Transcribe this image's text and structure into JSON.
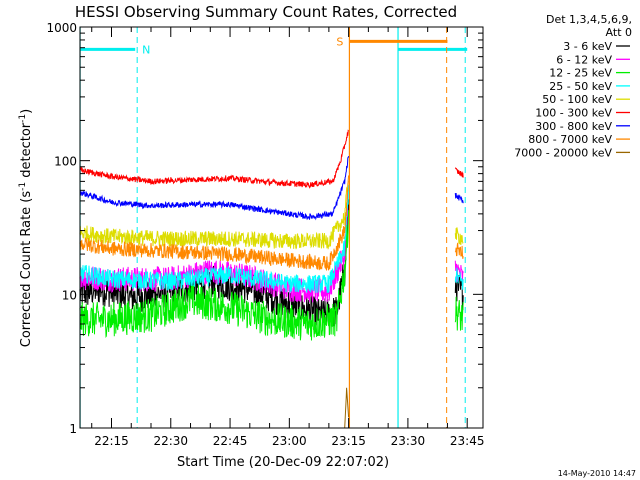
{
  "chart_data": {
    "type": "line",
    "title": "HESSI Observing Summary Count Rates, Corrected",
    "xlabel": "Start Time (20-Dec-09 22:07:02)",
    "ylabel_main": "Corrected Count Rate (s",
    "ylabel_sup1": "-1",
    "ylabel_mid": " detector",
    "ylabel_sup2": "-1",
    "ylabel_end": ")",
    "yscale": "log",
    "ylim": [
      1,
      1000
    ],
    "y_ticks": [
      {
        "v": 1,
        "label": "1"
      },
      {
        "v": 10,
        "label": "10"
      },
      {
        "v": 100,
        "label": "100"
      },
      {
        "v": 1000,
        "label": "1000"
      }
    ],
    "xlim": [
      "22:07:02",
      "23:49:00"
    ],
    "x_ticks": [
      {
        "t": "22:15",
        "label": "22:15"
      },
      {
        "t": "22:30",
        "label": "22:30"
      },
      {
        "t": "22:45",
        "label": "22:45"
      },
      {
        "t": "23:00",
        "label": "23:00"
      },
      {
        "t": "23:15",
        "label": "23:15"
      },
      {
        "t": "23:30",
        "label": "23:30"
      },
      {
        "t": "23:45",
        "label": "23:45"
      }
    ],
    "legend_header": [
      "Det 1,3,4,5,6,9,",
      "Att 0"
    ],
    "legend_position": "outside-right",
    "series": [
      {
        "name": "3 - 6 keV",
        "color": "#000000",
        "noise": 0.28,
        "points": [
          [
            "22:07",
            10
          ],
          [
            "22:12",
            11
          ],
          [
            "22:20",
            9.5
          ],
          [
            "22:30",
            10.5
          ],
          [
            "22:40",
            12.5
          ],
          [
            "22:50",
            11
          ],
          [
            "23:00",
            8.5
          ],
          [
            "23:08",
            7
          ],
          [
            "23:12",
            7.5
          ],
          [
            "23:14",
            15
          ],
          [
            "23:15",
            40
          ]
        ],
        "points2": [
          [
            "23:42",
            12
          ],
          [
            "23:44",
            10
          ]
        ]
      },
      {
        "name": "6 - 12 keV",
        "color": "#ff00ff",
        "noise": 0.22,
        "points": [
          [
            "22:07",
            13.5
          ],
          [
            "22:15",
            13
          ],
          [
            "22:30",
            13
          ],
          [
            "22:40",
            15
          ],
          [
            "22:50",
            13.5
          ],
          [
            "23:00",
            11
          ],
          [
            "23:10",
            10.5
          ],
          [
            "23:14",
            20
          ],
          [
            "23:15",
            55
          ]
        ],
        "points2": [
          [
            "23:42",
            16
          ],
          [
            "23:44",
            13
          ]
        ]
      },
      {
        "name": "12 - 25 keV",
        "color": "#00ee00",
        "noise": 0.3,
        "points": [
          [
            "22:07",
            6.5
          ],
          [
            "22:15",
            6.5
          ],
          [
            "22:25",
            7
          ],
          [
            "22:35",
            9
          ],
          [
            "22:45",
            8
          ],
          [
            "22:55",
            6.5
          ],
          [
            "23:05",
            6
          ],
          [
            "23:12",
            6.5
          ],
          [
            "23:14",
            15
          ],
          [
            "23:15",
            40
          ]
        ],
        "points2": [
          [
            "23:42",
            7.5
          ],
          [
            "23:44",
            6.5
          ]
        ]
      },
      {
        "name": "25 - 50 keV",
        "color": "#00ffff",
        "noise": 0.16,
        "points": [
          [
            "22:07",
            14.5
          ],
          [
            "22:15",
            13
          ],
          [
            "22:30",
            12.5
          ],
          [
            "22:45",
            14
          ],
          [
            "23:00",
            12
          ],
          [
            "23:10",
            12
          ],
          [
            "23:14",
            22
          ],
          [
            "23:15",
            60
          ]
        ],
        "points2": [
          [
            "23:42",
            14
          ],
          [
            "23:44",
            12
          ]
        ]
      },
      {
        "name": "50 - 100 keV",
        "color": "#dddd00",
        "noise": 0.14,
        "points": [
          [
            "22:07",
            29
          ],
          [
            "22:15",
            27
          ],
          [
            "22:30",
            26
          ],
          [
            "22:45",
            26
          ],
          [
            "23:00",
            25
          ],
          [
            "23:10",
            25
          ],
          [
            "23:14",
            38
          ],
          [
            "23:15",
            80
          ]
        ],
        "points2": [
          [
            "23:42",
            28
          ],
          [
            "23:44",
            26
          ]
        ]
      },
      {
        "name": "100 - 300 keV",
        "color": "#ff0000",
        "noise": 0.05,
        "points": [
          [
            "22:07",
            85
          ],
          [
            "22:15",
            76
          ],
          [
            "22:25",
            70
          ],
          [
            "22:35",
            72
          ],
          [
            "22:45",
            74
          ],
          [
            "22:55",
            69
          ],
          [
            "23:05",
            66
          ],
          [
            "23:11",
            70
          ],
          [
            "23:13",
            100
          ],
          [
            "23:14",
            130
          ],
          [
            "23:15",
            170
          ]
        ],
        "points2": [
          [
            "23:42",
            85
          ],
          [
            "23:44",
            78
          ]
        ]
      },
      {
        "name": "300 - 800 keV",
        "color": "#0000ff",
        "noise": 0.05,
        "points": [
          [
            "22:07",
            58
          ],
          [
            "22:15",
            49
          ],
          [
            "22:25",
            46
          ],
          [
            "22:35",
            47
          ],
          [
            "22:45",
            47
          ],
          [
            "22:55",
            42
          ],
          [
            "23:05",
            38
          ],
          [
            "23:11",
            40
          ],
          [
            "23:14",
            70
          ],
          [
            "23:15",
            110
          ]
        ],
        "points2": [
          [
            "23:42",
            55
          ],
          [
            "23:44",
            50
          ]
        ]
      },
      {
        "name": "800 - 7000 keV",
        "color": "#ff8800",
        "noise": 0.13,
        "points": [
          [
            "22:07",
            24
          ],
          [
            "22:15",
            22
          ],
          [
            "22:30",
            21
          ],
          [
            "22:45",
            20
          ],
          [
            "23:00",
            18
          ],
          [
            "23:10",
            17
          ],
          [
            "23:14",
            30
          ],
          [
            "23:15",
            70
          ]
        ],
        "points2": [
          [
            "23:42",
            22
          ],
          [
            "23:44",
            20
          ]
        ]
      },
      {
        "name": "7000 - 20000 keV",
        "color": "#996600",
        "noise": 0.0,
        "points": [
          [
            "23:14",
            1
          ],
          [
            "23:14.5",
            2
          ],
          [
            "23:15",
            1.2
          ]
        ],
        "points2": []
      }
    ],
    "flag_markers": [
      {
        "label": "N",
        "color": "#00eeee",
        "t_start": "22:07",
        "t_end": "22:21",
        "y": 680,
        "dash_at": "22:21.5"
      },
      {
        "label": "",
        "color": "#00eeee",
        "t_start": "23:27.5",
        "t_end": "23:45",
        "y": 680,
        "dash_at": "23:44.5"
      },
      {
        "label": "S",
        "color": "#ff8800",
        "t_start": "23:15.2",
        "t_end": "23:40",
        "y": 780,
        "dash_at": "23:39.8"
      }
    ],
    "vlines": [
      {
        "t": "22:07.05",
        "color": "#00eeee"
      },
      {
        "t": "23:15.2",
        "color": "#ff8800"
      },
      {
        "t": "23:27.5",
        "color": "#00eeee"
      }
    ]
  },
  "footer": {
    "timestamp": "14-May-2010 14:47"
  }
}
